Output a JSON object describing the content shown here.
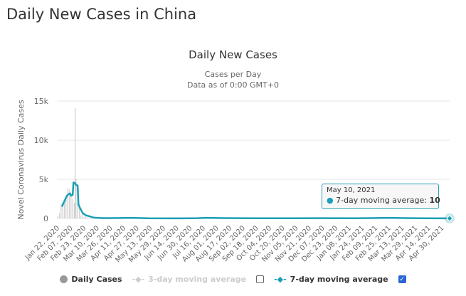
{
  "page_title": "Daily New Cases in China",
  "chart_data": {
    "type": "line",
    "title": "Daily New Cases",
    "subtitle": [
      "Cases per Day",
      "Data as of 0:00 GMT+0"
    ],
    "ylabel": "Novel Coronavirus Daily Cases",
    "ylim": [
      0,
      15000
    ],
    "yticks": [
      "0",
      "5k",
      "10k",
      "15k"
    ],
    "ytick_values": [
      0,
      5000,
      10000,
      15000
    ],
    "x_range_days": [
      0,
      474
    ],
    "xticks": [
      "Jan 22, 2020",
      "Feb 07, 2020",
      "Feb 23, 2020",
      "Mar 10, 2020",
      "Mar 26, 2020",
      "Apr 11, 2020",
      "Apr 27, 2020",
      "May 13, 2020",
      "May 29, 2020",
      "Jun 14, 2020",
      "Jun 30, 2020",
      "Jul 16, 2020",
      "Aug 01, 2020",
      "Aug 17, 2020",
      "Sep 02, 2020",
      "Sep 18, 2020",
      "Oct 04, 2020",
      "Oct 20, 2020",
      "Nov 05, 2020",
      "Nov 21, 2020",
      "Dec 07, 2020",
      "Dec 23, 2020",
      "Jan 08, 2021",
      "Jan 24, 2021",
      "Feb 09, 2021",
      "Feb 25, 2021",
      "Mar 13, 2021",
      "Mar 29, 2021",
      "Apr 14, 2021",
      "Apr 30, 2021"
    ],
    "series": [
      {
        "name": "Daily Cases",
        "color": "#d0d0d0",
        "day_values": [
          [
            1,
            250
          ],
          [
            3,
            700
          ],
          [
            5,
            1800
          ],
          [
            7,
            2000
          ],
          [
            9,
            2100
          ],
          [
            11,
            2600
          ],
          [
            13,
            3900
          ],
          [
            15,
            3700
          ],
          [
            17,
            3200
          ],
          [
            19,
            2500
          ],
          [
            21,
            2000
          ],
          [
            22,
            14100
          ],
          [
            23,
            5100
          ],
          [
            25,
            2000
          ],
          [
            27,
            1800
          ],
          [
            29,
            400
          ],
          [
            31,
            600
          ],
          [
            33,
            200
          ],
          [
            35,
            400
          ],
          [
            37,
            120
          ],
          [
            40,
            100
          ],
          [
            45,
            40
          ]
        ]
      },
      {
        "name": "7-day moving average",
        "color": "#1a9fb5",
        "day_values": [
          [
            6,
            1500
          ],
          [
            9,
            2200
          ],
          [
            12,
            2900
          ],
          [
            14,
            3100
          ],
          [
            16,
            3200
          ],
          [
            17,
            2900
          ],
          [
            19,
            3000
          ],
          [
            20,
            4600
          ],
          [
            22,
            4500
          ],
          [
            23,
            4300
          ],
          [
            25,
            4200
          ],
          [
            26,
            1800
          ],
          [
            28,
            1300
          ],
          [
            31,
            700
          ],
          [
            35,
            400
          ],
          [
            40,
            250
          ],
          [
            45,
            100
          ],
          [
            55,
            40
          ],
          [
            70,
            50
          ],
          [
            90,
            80
          ],
          [
            110,
            20
          ],
          [
            140,
            10
          ],
          [
            170,
            30
          ],
          [
            180,
            80
          ],
          [
            200,
            40
          ],
          [
            240,
            20
          ],
          [
            280,
            20
          ],
          [
            320,
            30
          ],
          [
            360,
            25
          ],
          [
            380,
            40
          ],
          [
            400,
            80
          ],
          [
            420,
            40
          ],
          [
            440,
            20
          ],
          [
            474,
            10
          ]
        ]
      }
    ],
    "tooltip": {
      "date": "May 10, 2021",
      "label": "7-day moving average: ",
      "value": "10"
    }
  },
  "legend": [
    {
      "label": "Daily Cases",
      "enabled": true
    },
    {
      "label": "3-day moving average",
      "enabled": false,
      "checked": false
    },
    {
      "label": "7-day moving average",
      "enabled": true,
      "checked": true
    }
  ]
}
